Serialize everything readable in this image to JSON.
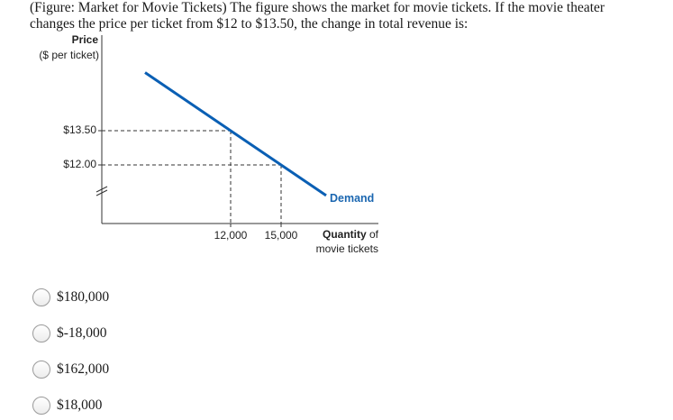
{
  "question": {
    "line1": "(Figure: Market for Movie Tickets) The figure shows the market for movie tickets. If the movie theater",
    "line2": "changes the price per ticket from $12 to $13.50, the change in total revenue is:"
  },
  "chart_data": {
    "type": "line",
    "ylabel_bold": "Price",
    "ylabel_sub": "($ per ticket)",
    "xlabel_bold": "Quantity",
    "xlabel_rest": " of",
    "xlabel_sub": "movie tickets",
    "yticks": [
      13.5,
      12.0
    ],
    "ytick_labels": [
      "$13.50",
      "$12.00"
    ],
    "xticks": [
      12000,
      15000
    ],
    "xtick_labels": [
      "12,000",
      "15,000"
    ],
    "axis_breaks": "y",
    "series": [
      {
        "name": "Demand",
        "color": "#0a5fb4",
        "points": [
          [
            12000,
            13.5
          ],
          [
            15000,
            12.0
          ]
        ]
      }
    ],
    "grid": false
  },
  "options": [
    {
      "label": "$180,000"
    },
    {
      "label": "$-18,000"
    },
    {
      "label": "$162,000"
    },
    {
      "label": "$18,000"
    }
  ]
}
